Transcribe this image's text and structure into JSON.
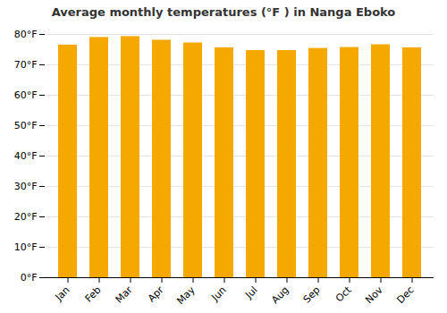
{
  "chart_data": {
    "type": "bar",
    "title": "Average monthly temperatures (°F ) in Nanga Eboko",
    "categories": [
      "Jan",
      "Feb",
      "Mar",
      "Apr",
      "May",
      "Jun",
      "Jul",
      "Aug",
      "Sep",
      "Oct",
      "Nov",
      "Dec"
    ],
    "values": [
      76.5,
      79.0,
      79.3,
      78.1,
      77.2,
      75.6,
      74.7,
      74.7,
      75.4,
      75.7,
      76.6,
      75.6
    ],
    "color": "#F5A800",
    "ylim": [
      0,
      80
    ],
    "yticks": [
      {
        "value": 0,
        "label": "0°F"
      },
      {
        "value": 10,
        "label": "10°F"
      },
      {
        "value": 20,
        "label": "20°F"
      },
      {
        "value": 30,
        "label": "30°F"
      },
      {
        "value": 40,
        "label": "40°F"
      },
      {
        "value": 50,
        "label": "50°F"
      },
      {
        "value": 60,
        "label": "60°F"
      },
      {
        "value": 70,
        "label": "70°F"
      },
      {
        "value": 80,
        "label": "80°F"
      }
    ],
    "grid": true
  }
}
